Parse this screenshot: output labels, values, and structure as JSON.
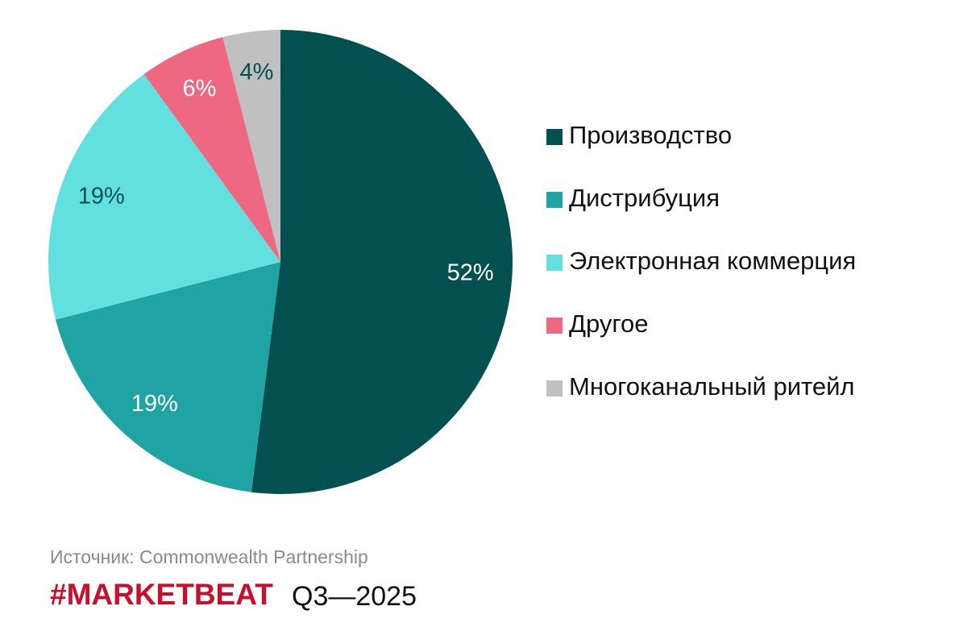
{
  "chart_data": {
    "type": "pie",
    "categories": [
      "Производство",
      "Дистрибуция",
      "Электронная коммерция",
      "Другое",
      "Многоканальный ритейл"
    ],
    "values": [
      52,
      19,
      19,
      6,
      4
    ],
    "value_labels": [
      "52%",
      "19%",
      "19%",
      "6%",
      "4%"
    ],
    "colors": [
      "#02504f",
      "#20a3a3",
      "#62e0e0",
      "#ef6882",
      "#c0c0c0"
    ],
    "legend": "right",
    "source": "Источник: Commonwealth Partnership",
    "brand": "#MARKETBEAT",
    "period": "Q3—2025"
  }
}
